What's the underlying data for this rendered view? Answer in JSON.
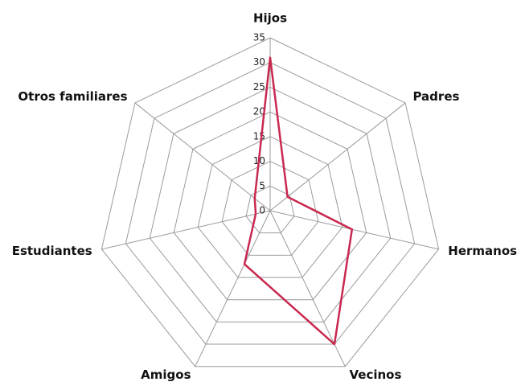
{
  "chart_data": {
    "type": "radar",
    "categories": [
      "Hijos",
      "Padres",
      "Hermanos",
      "Vecinos",
      "Amigos",
      "Estudiantes",
      "Otros familiares"
    ],
    "series": [
      {
        "color": "#c9284f",
        "values": [
          31,
          4.5,
          17,
          30,
          12,
          3,
          4
        ]
      }
    ],
    "ylim": [
      0,
      35
    ],
    "yticks": [
      0,
      5,
      10,
      15,
      20,
      25,
      30,
      35
    ],
    "grid": true
  }
}
